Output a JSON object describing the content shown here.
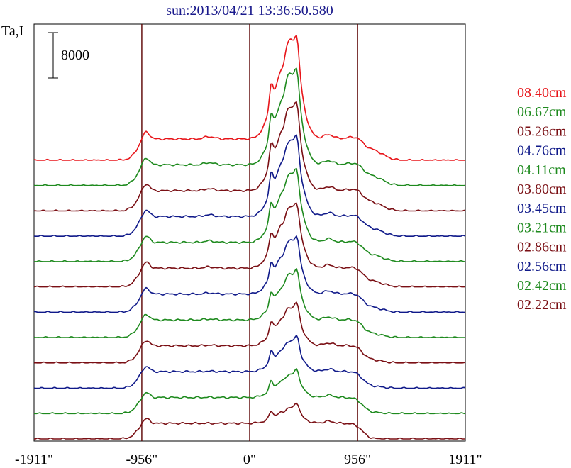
{
  "chart_data": {
    "type": "line",
    "title": "sun:2013/04/21 13:36:50.580",
    "ylabel": "Ta,I",
    "xlabel": "",
    "x_tick_labels": [
      "-1911\"",
      "-956\"",
      "0\"",
      "956\"",
      "1911\""
    ],
    "x_ticks": [
      -1911,
      -956,
      0,
      956,
      1911
    ],
    "xlim": [
      -1911,
      1911
    ],
    "vlines": [
      -956,
      0,
      956
    ],
    "scale_bar": {
      "value": 8000,
      "label": "8000"
    },
    "legend_position": "right",
    "grid": false,
    "series": [
      {
        "name": "08.40cm",
        "color": "#e8151a"
      },
      {
        "name": "06.67cm",
        "color": "#1e8a1e"
      },
      {
        "name": "05.26cm",
        "color": "#7a0f14"
      },
      {
        "name": "04.76cm",
        "color": "#101a8a"
      },
      {
        "name": "04.11cm",
        "color": "#1e8a1e"
      },
      {
        "name": "03.80cm",
        "color": "#7a0f14"
      },
      {
        "name": "03.45cm",
        "color": "#101a8a"
      },
      {
        "name": "03.21cm",
        "color": "#1e8a1e"
      },
      {
        "name": "02.86cm",
        "color": "#7a0f14"
      },
      {
        "name": "02.56cm",
        "color": "#101a8a"
      },
      {
        "name": "02.42cm",
        "color": "#1e8a1e"
      },
      {
        "name": "02.22cm",
        "color": "#7a0f14"
      }
    ]
  }
}
